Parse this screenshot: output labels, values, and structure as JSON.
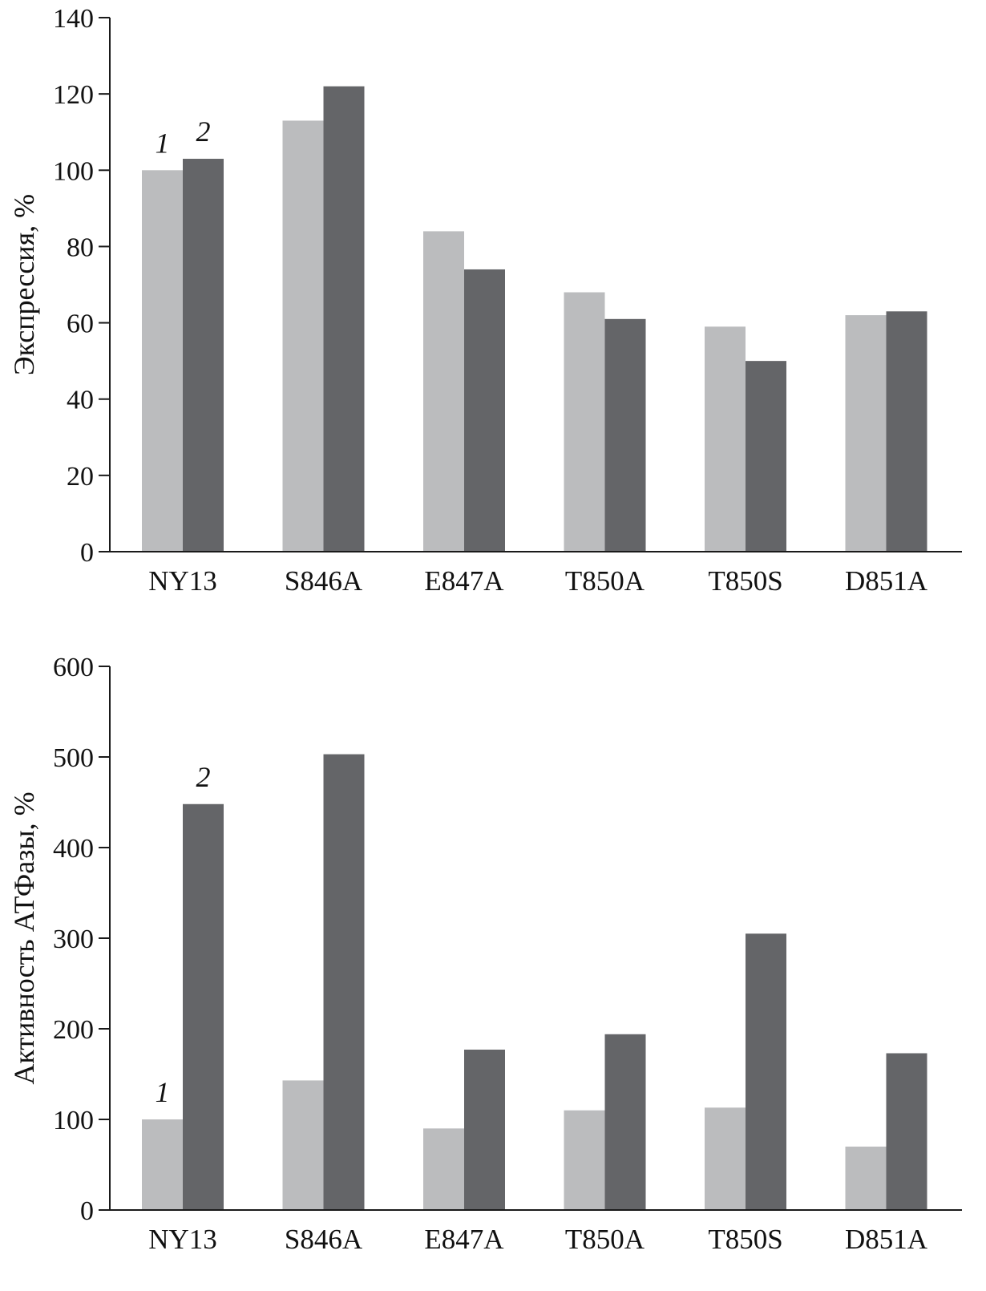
{
  "series_colors": {
    "1": "#bbbcbe",
    "2": "#646568"
  },
  "chart_data": [
    {
      "type": "bar",
      "categories": [
        "NY13",
        "S846A",
        "E847A",
        "T850A",
        "T850S",
        "D851A"
      ],
      "series": [
        {
          "name": "1",
          "values": [
            100,
            113,
            84,
            68,
            59,
            62
          ]
        },
        {
          "name": "2",
          "values": [
            103,
            122,
            74,
            61,
            50,
            63
          ]
        }
      ],
      "ylabel": "Экспрессия, %",
      "xlabel": "",
      "ylim": [
        0,
        140
      ],
      "yticks": [
        0,
        20,
        40,
        60,
        80,
        100,
        120,
        140
      ],
      "grid": false,
      "series_markers_at_category": "NY13"
    },
    {
      "type": "bar",
      "categories": [
        "NY13",
        "S846A",
        "E847A",
        "T850A",
        "T850S",
        "D851A"
      ],
      "series": [
        {
          "name": "1",
          "values": [
            100,
            143,
            90,
            110,
            113,
            70
          ]
        },
        {
          "name": "2",
          "values": [
            448,
            503,
            177,
            194,
            305,
            173
          ]
        }
      ],
      "ylabel": "Активность АТФазы, %",
      "xlabel": "",
      "ylim": [
        0,
        600
      ],
      "yticks": [
        0,
        100,
        200,
        300,
        400,
        500,
        600
      ],
      "grid": false,
      "series_markers_at_category": "NY13"
    }
  ]
}
